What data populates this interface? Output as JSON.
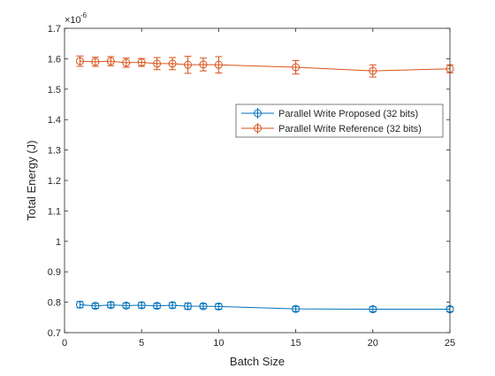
{
  "chart_data": {
    "type": "line",
    "title": "",
    "xlabel": "Batch Size",
    "ylabel": "Total Energy (J)",
    "y_scale_label": "×10",
    "y_scale_exponent": "-6",
    "xlim": [
      0,
      25
    ],
    "ylim": [
      0.7,
      1.7
    ],
    "xticks": [
      0,
      5,
      10,
      15,
      20,
      25
    ],
    "xtick_labels": [
      "0",
      "5",
      "10",
      "15",
      "20",
      "25"
    ],
    "yticks": [
      0.7,
      0.8,
      0.9,
      1.0,
      1.1,
      1.2,
      1.3,
      1.4,
      1.5,
      1.6,
      1.7
    ],
    "ytick_labels": [
      "0.7",
      "0.8",
      "0.9",
      "1",
      "1.1",
      "1.2",
      "1.3",
      "1.4",
      "1.5",
      "1.6",
      "1.7"
    ],
    "grid": false,
    "legend_position": "upper-right-center",
    "x": [
      1,
      2,
      3,
      4,
      5,
      6,
      7,
      8,
      9,
      10,
      15,
      20,
      25
    ],
    "series": [
      {
        "name": "Parallel Write Proposed (32 bits)",
        "color": "#0072BD",
        "marker": "circle",
        "values": [
          0.792,
          0.788,
          0.791,
          0.789,
          0.79,
          0.788,
          0.79,
          0.787,
          0.787,
          0.786,
          0.778,
          0.777,
          0.777
        ],
        "errors": [
          0.01,
          0.008,
          0.009,
          0.008,
          0.009,
          0.008,
          0.009,
          0.01,
          0.008,
          0.009,
          0.008,
          0.008,
          0.008
        ]
      },
      {
        "name": "Parallel Write Reference (32 bits)",
        "color": "#D95319",
        "marker": "circle",
        "values": [
          1.592,
          1.59,
          1.592,
          1.587,
          1.588,
          1.584,
          1.584,
          1.58,
          1.581,
          1.58,
          1.572,
          1.56,
          1.567
        ],
        "errors": [
          0.017,
          0.015,
          0.015,
          0.015,
          0.013,
          0.02,
          0.02,
          0.028,
          0.021,
          0.027,
          0.022,
          0.02,
          0.013
        ]
      }
    ]
  }
}
